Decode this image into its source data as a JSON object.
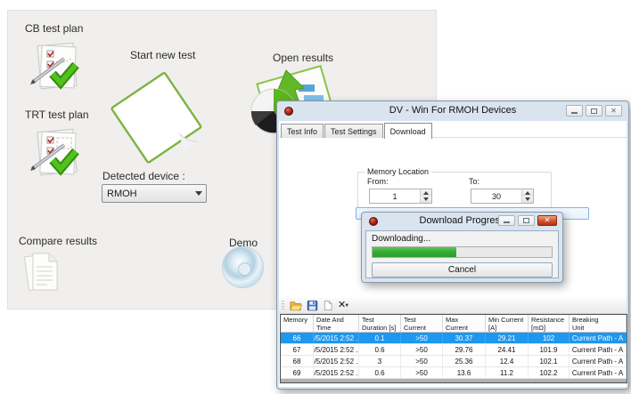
{
  "launcher": {
    "cb_test_plan_label": "CB test plan",
    "trt_test_plan_label": "TRT test plan",
    "start_new_test_label": "Start new test",
    "open_results_label": "Open results",
    "compare_results_label": "Compare results",
    "demo_label": "Demo",
    "detected_device_label": "Detected device :",
    "detected_device_value": "RMOH"
  },
  "main_window": {
    "title": "DV - Win For RMOH Devices",
    "tabs": [
      {
        "label": "Test Info"
      },
      {
        "label": "Test Settings"
      },
      {
        "label": "Download"
      }
    ],
    "active_tab": "Download",
    "memory_location": {
      "legend": "Memory Location",
      "from_label": "From:",
      "from_value": "1",
      "to_label": "To:",
      "to_value": "30"
    },
    "toolbar_icons": [
      "open-file-icon",
      "save-icon",
      "new-file-icon",
      "delete-icon"
    ],
    "table": {
      "headers": [
        "Memory",
        "Date And\nTime",
        "Test\nDuration [s]",
        "Test Current\n[A]",
        "Max Current\n[A]",
        "Min Current\n[A]",
        "Resistance\n[mΩ]",
        "Breaking\nUnit"
      ],
      "rows": [
        {
          "selected": true,
          "cells": [
            "66",
            "3/5/2015 2:52 ...",
            "0.1",
            ">50",
            "30.37",
            "29.21",
            "102",
            "Current Path - A"
          ]
        },
        {
          "selected": false,
          "cells": [
            "67",
            "3/5/2015 2:52 ...",
            "0.6",
            ">50",
            "29.76",
            "24.41",
            "101.9",
            "Current Path - A"
          ]
        },
        {
          "selected": false,
          "cells": [
            "68",
            "3/5/2015 2:52 ...",
            "3",
            ">50",
            "25.36",
            "12.4",
            "102.1",
            "Current Path - A"
          ]
        },
        {
          "selected": false,
          "cells": [
            "69",
            "3/5/2015 2:52 ...",
            "0.6",
            ">50",
            "13.6",
            "11.2",
            "102.2",
            "Current Path - A"
          ]
        }
      ]
    }
  },
  "progress_dialog": {
    "title": "Download Progress",
    "status_text": "Downloading...",
    "progress_percent": 47,
    "cancel_label": "Cancel"
  },
  "colors": {
    "selected_row": "#1e97ef",
    "progress_green": "#35ad35",
    "focused_button_border": "#7eb4ea",
    "launcher_background": "#f0efed"
  }
}
